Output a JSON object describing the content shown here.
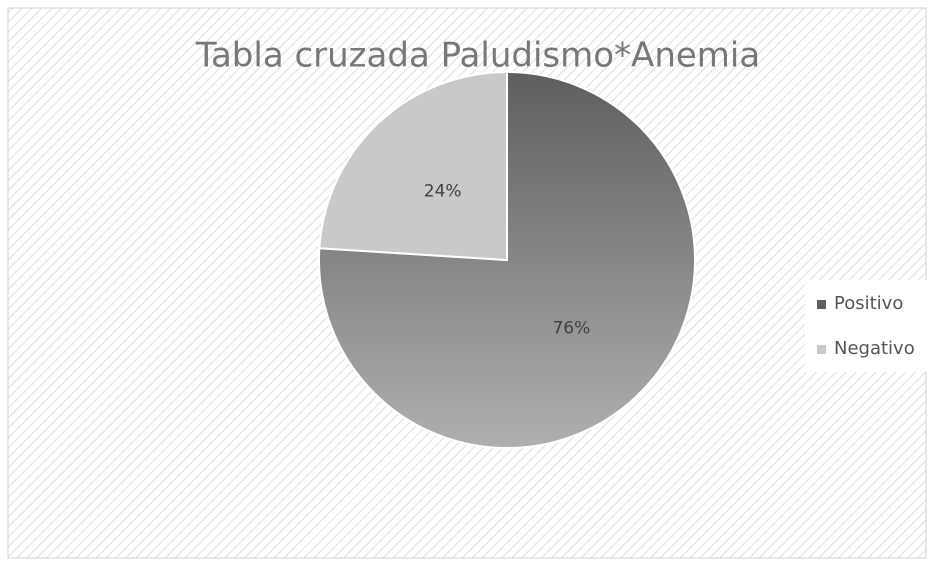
{
  "chart_data": {
    "type": "pie",
    "title": "Tabla cruzada Paludismo*Anemia",
    "categories": [
      "Positivo",
      "Negativo"
    ],
    "values": [
      76,
      24
    ],
    "value_labels": [
      "76%",
      "24%"
    ],
    "colors": [
      "#5e5e5e",
      "#c9c9c9"
    ],
    "legend": "right"
  }
}
